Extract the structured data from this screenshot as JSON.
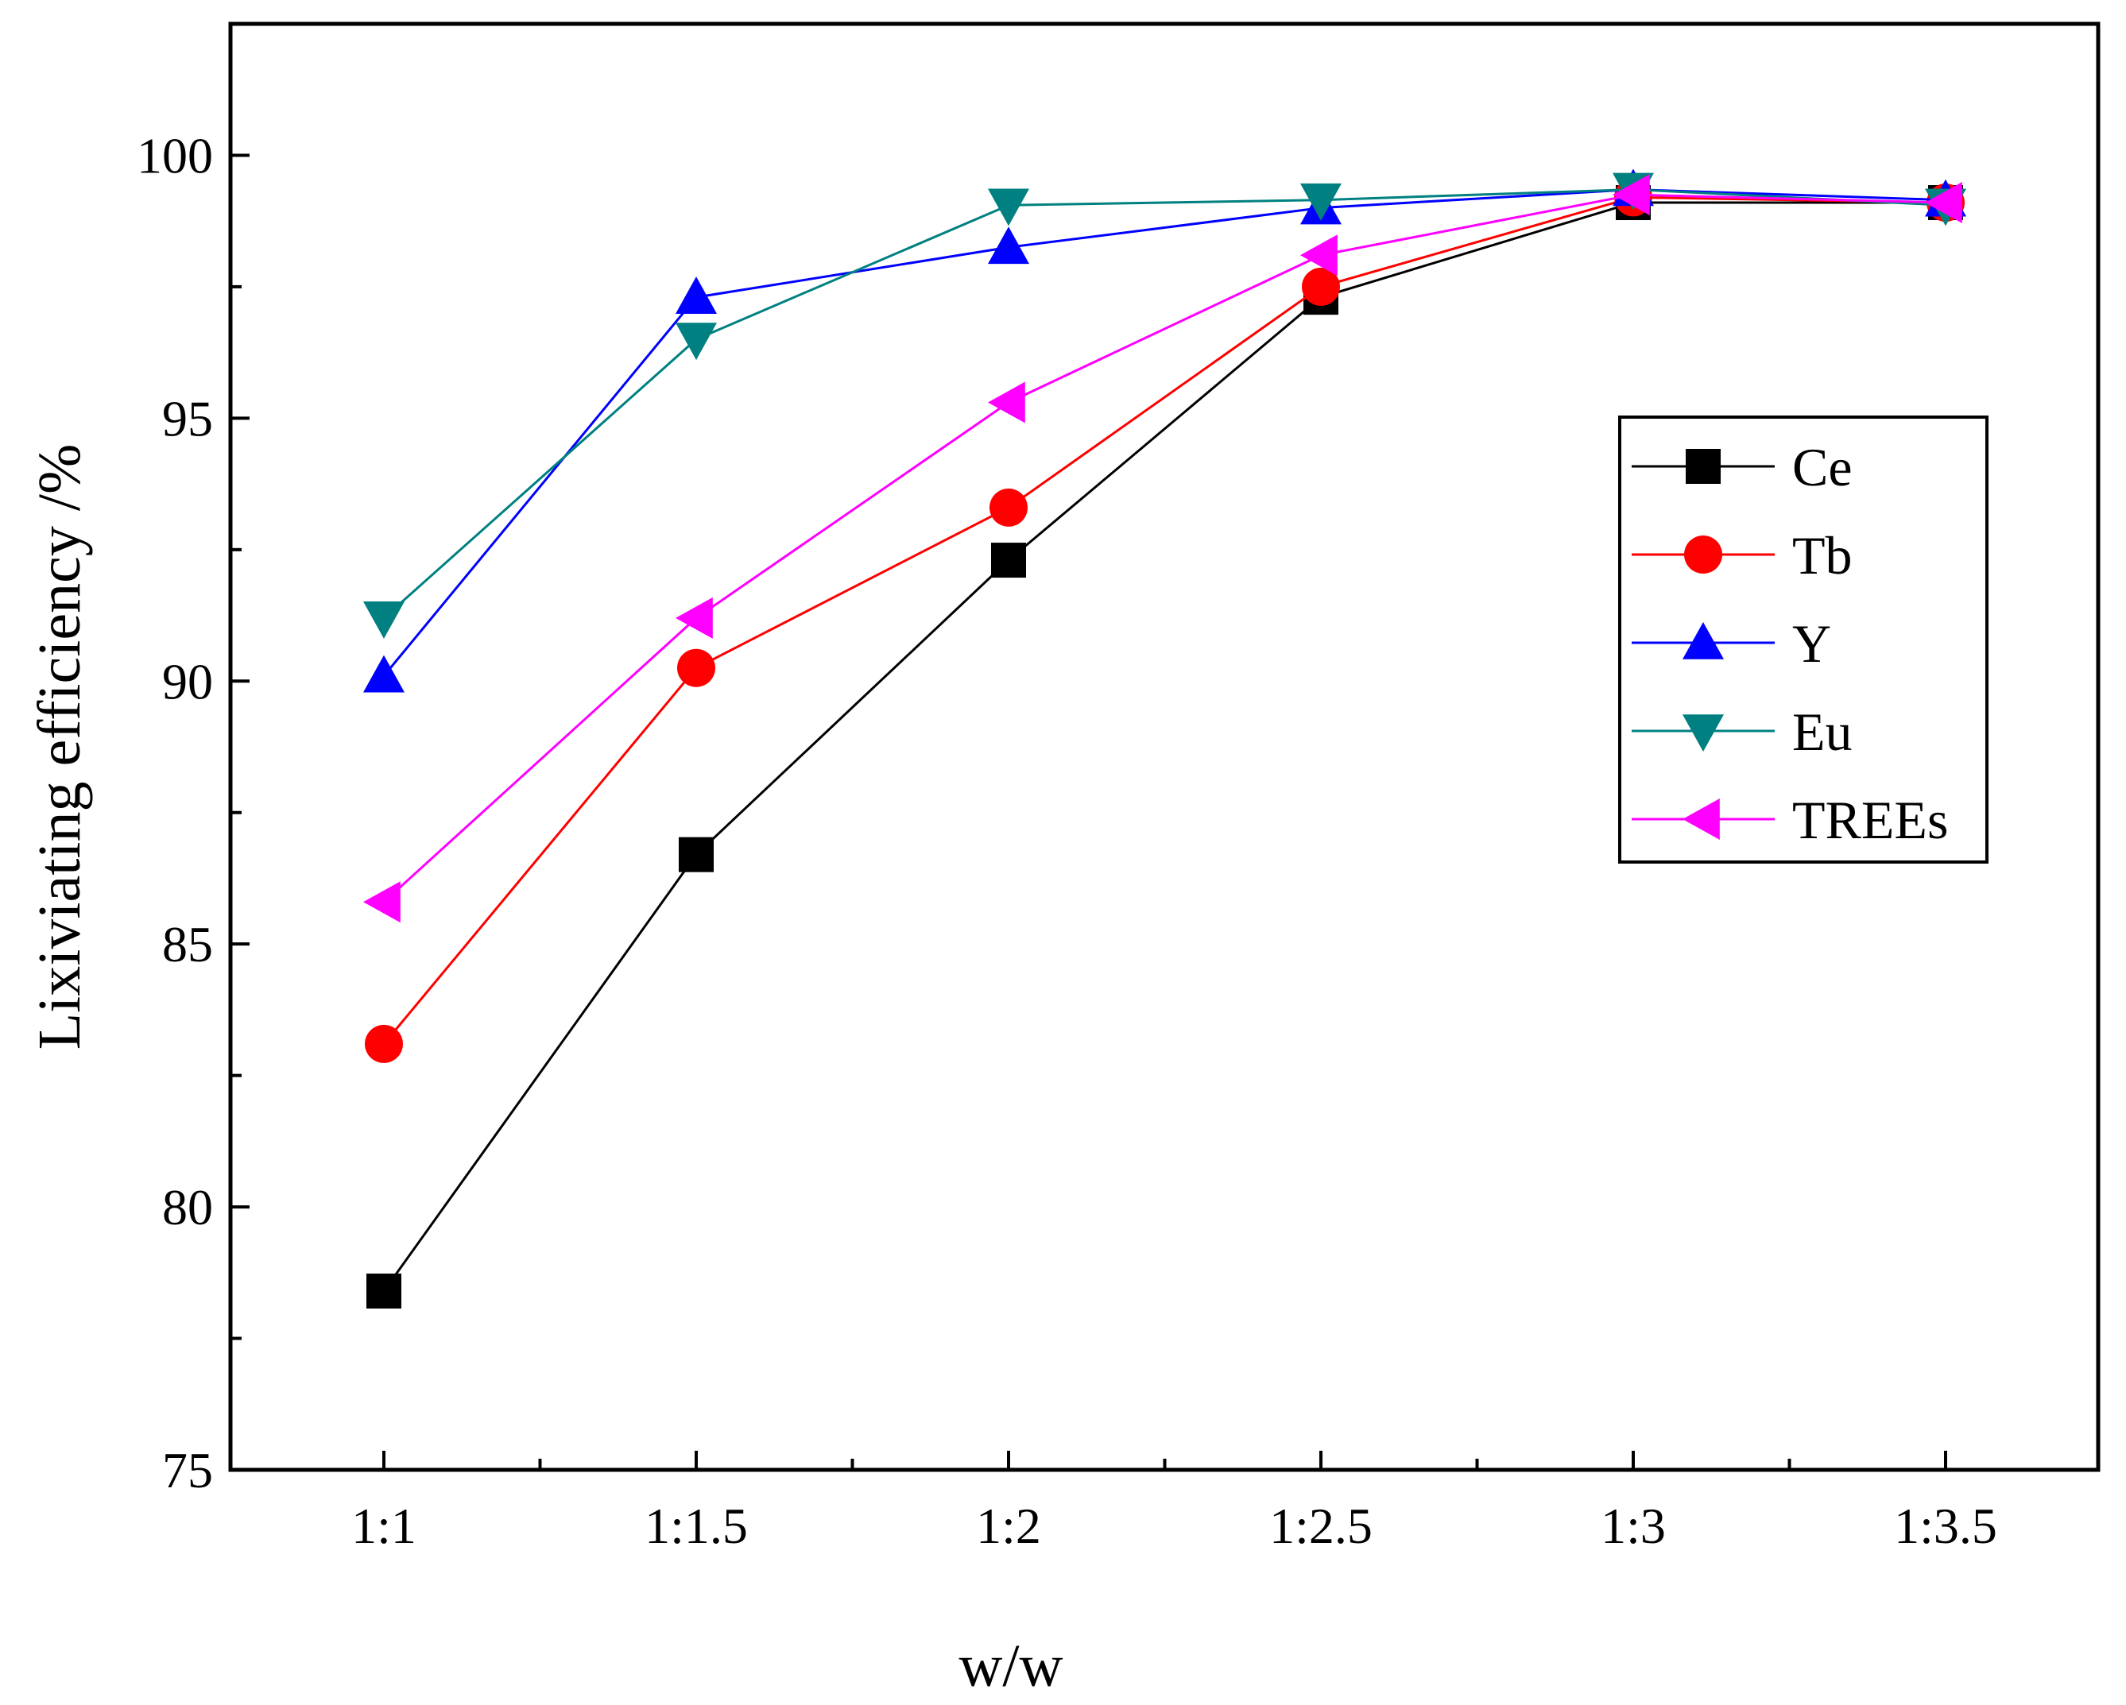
{
  "chart_data": {
    "type": "line",
    "title": "",
    "xlabel": "w/w",
    "ylabel": "Lixiviating efficiency /%",
    "categories": [
      "1:1",
      "1:1.5",
      "1:2",
      "1:2.5",
      "1:3",
      "1:3.5"
    ],
    "ylim": [
      75,
      102.5
    ],
    "yticks": [
      75,
      80,
      85,
      90,
      95,
      100
    ],
    "grid": false,
    "legend_position": "right",
    "series": [
      {
        "name": "Ce",
        "color": "#000000",
        "marker": "square",
        "values": [
          78.4,
          86.7,
          92.3,
          97.3,
          99.1,
          99.1
        ]
      },
      {
        "name": "Tb",
        "color": "#ff0000",
        "marker": "circle",
        "values": [
          83.1,
          90.25,
          93.3,
          97.5,
          99.2,
          99.1
        ]
      },
      {
        "name": "Y",
        "color": "#0000ff",
        "marker": "triangle-up",
        "values": [
          90.1,
          97.3,
          98.25,
          99.0,
          99.35,
          99.15
        ]
      },
      {
        "name": "Eu",
        "color": "#008080",
        "marker": "triangle-down",
        "values": [
          91.2,
          96.5,
          99.05,
          99.15,
          99.35,
          99.05
        ]
      },
      {
        "name": "TREEs",
        "color": "#ff00ff",
        "marker": "triangle-left",
        "values": [
          85.8,
          91.2,
          95.3,
          98.1,
          99.25,
          99.1
        ]
      }
    ]
  }
}
